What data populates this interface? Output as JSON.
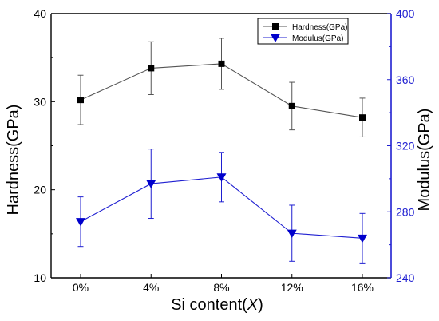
{
  "chart_data": {
    "type": "line",
    "categories": [
      "0%",
      "4%",
      "8%",
      "12%",
      "16%"
    ],
    "xlabel_prefix": "Si content(",
    "xlabel_var": "X",
    "xlabel_suffix": ")",
    "ylabel_left": "Hardness(GPa)",
    "ylabel_right": "Modulus(GPa)",
    "ylim_left": [
      10,
      40
    ],
    "ylim_right": [
      240,
      400
    ],
    "yticks_left": [
      10,
      20,
      30,
      40
    ],
    "yticks_right": [
      240,
      280,
      320,
      360,
      400
    ],
    "grid": false,
    "legend_position": "top-right",
    "series": [
      {
        "name": "Hardness(GPa)",
        "axis": "left",
        "marker": "square",
        "color": "#000000",
        "line_color": "#555555",
        "values": [
          30.2,
          33.8,
          34.3,
          29.5,
          28.2
        ],
        "errors": [
          2.8,
          3.0,
          2.9,
          2.7,
          2.2
        ]
      },
      {
        "name": "Modulus(GPa)",
        "axis": "right",
        "marker": "triangle-down",
        "color": "#0000cc",
        "line_color": "#1f1fd1",
        "values": [
          274,
          297,
          301,
          267,
          264
        ],
        "errors": [
          15,
          21,
          15,
          17,
          15
        ]
      }
    ]
  }
}
